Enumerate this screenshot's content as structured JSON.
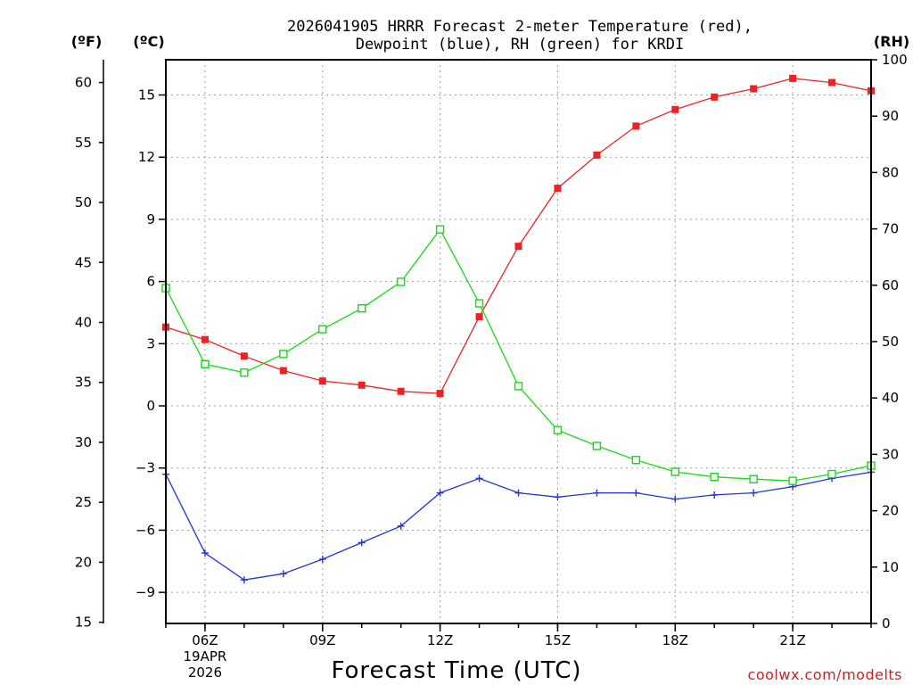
{
  "title": {
    "line1": "2026041905 HRRR Forecast 2-meter Temperature (red),",
    "line2": "Dewpoint (blue), RH (green) for KRDI"
  },
  "units": {
    "fahrenheit": "(ºF)",
    "celsius": "(ºC)",
    "rh": "(RH)"
  },
  "credit": "coolwx.com/modelts",
  "colors": {
    "temperature": "#ee2222",
    "dewpoint": "#2233dd",
    "rh": "#11dd11",
    "grid": "#a0a0a0"
  },
  "chart_data": {
    "type": "line",
    "title": "2026041905 HRRR Forecast 2-meter Temperature (red), Dewpoint (blue), RH (green) for KRDI",
    "xlabel": "Forecast Time (UTC)",
    "x_hours": [
      5,
      6,
      7,
      8,
      9,
      10,
      11,
      12,
      13,
      14,
      15,
      16,
      17,
      18,
      19,
      20,
      21,
      22,
      23
    ],
    "xlim": [
      5,
      23
    ],
    "x_ticks": [
      {
        "hour": 6,
        "label": "06Z",
        "sub1": "19APR",
        "sub2": "2026"
      },
      {
        "hour": 9,
        "label": "09Z"
      },
      {
        "hour": 12,
        "label": "12Z"
      },
      {
        "hour": 15,
        "label": "15Z"
      },
      {
        "hour": 18,
        "label": "18Z"
      },
      {
        "hour": 21,
        "label": "21Z"
      }
    ],
    "y_celsius": {
      "label": "(ºC)",
      "ylim": [
        -10.5,
        16.7
      ],
      "ticks": [
        15,
        12,
        9,
        6,
        3,
        0,
        -3,
        -6,
        -9
      ]
    },
    "y_fahrenheit": {
      "label": "(ºF)",
      "ylim": [
        14.9,
        61.9
      ],
      "ticks": [
        60,
        55,
        50,
        45,
        40,
        35,
        30,
        25,
        20,
        15
      ]
    },
    "y_rh": {
      "label": "(RH)",
      "ylim": [
        0,
        100
      ],
      "ticks": [
        100,
        90,
        80,
        70,
        60,
        50,
        40,
        30,
        20,
        10,
        0
      ]
    },
    "series": [
      {
        "name": "2-meter Temperature",
        "axis": "celsius",
        "color": "#ee2222",
        "marker": "filled-square",
        "values": [
          3.8,
          3.2,
          2.4,
          1.7,
          1.2,
          1.0,
          0.7,
          0.6,
          4.3,
          7.7,
          10.5,
          12.1,
          13.5,
          14.3,
          14.9,
          15.3,
          15.8,
          15.6,
          15.2
        ]
      },
      {
        "name": "Dewpoint",
        "axis": "celsius",
        "color": "#2233dd",
        "marker": "plus",
        "values": [
          -3.3,
          -7.1,
          -8.4,
          -8.1,
          -7.4,
          -6.6,
          -5.8,
          -4.2,
          -3.5,
          -4.2,
          -4.4,
          -4.2,
          -4.2,
          -4.5,
          -4.3,
          -4.2,
          -3.9,
          -3.5,
          -3.2
        ]
      },
      {
        "name": "Relative Humidity",
        "axis": "rh",
        "color": "#11dd11",
        "marker": "open-square",
        "values": [
          59.5,
          46.0,
          44.5,
          47.8,
          52.2,
          55.9,
          60.6,
          69.9,
          56.8,
          42.1,
          34.3,
          31.5,
          29.0,
          26.9,
          26.0,
          25.6,
          25.3,
          26.5,
          28.0
        ]
      }
    ]
  }
}
